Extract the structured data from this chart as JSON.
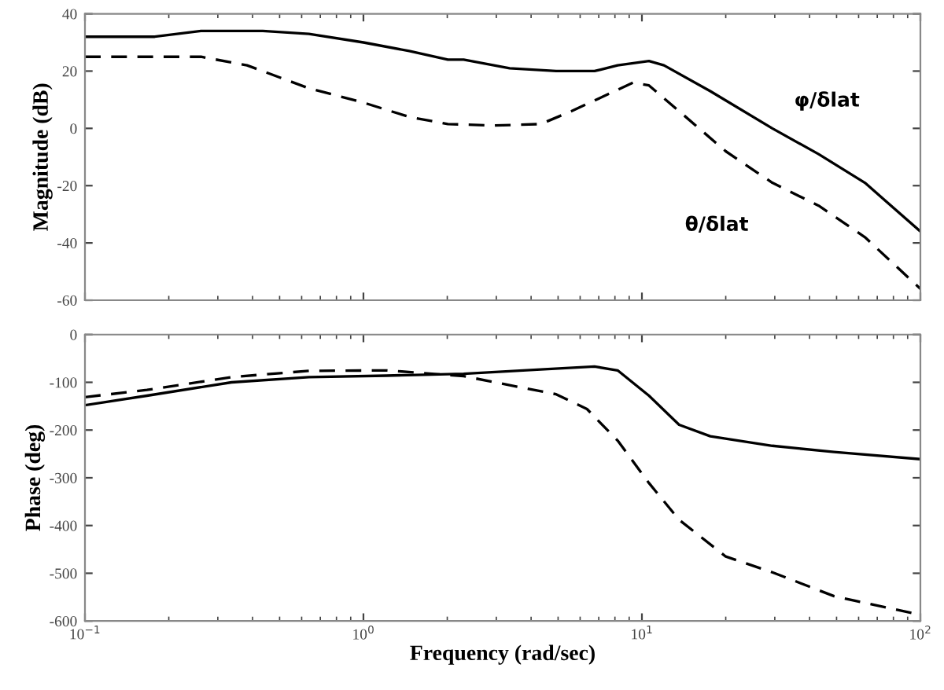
{
  "chart_data": [
    {
      "type": "line",
      "ylabel": "Magnitude (dB)",
      "log": "x",
      "xlim": [
        0.1,
        100
      ],
      "xticks": [
        {
          "value": 0.1,
          "label": null
        },
        {
          "value": 1,
          "label": null
        },
        {
          "value": 10,
          "label": null
        },
        {
          "value": 100,
          "label": null
        }
      ],
      "ylim": [
        -60,
        40
      ],
      "yticks": [
        -60,
        -40,
        -20,
        0,
        20,
        40
      ],
      "tick_labels": "y",
      "grid": false,
      "legend": false,
      "series": [
        {
          "name": "φ/δlat",
          "color": "#000000",
          "line_style": "solid",
          "x": [
            0.1,
            0.178,
            0.261,
            0.435,
            0.637,
            1,
            1.46,
            2.01,
            2.29,
            3.35,
            4.92,
            6.76,
            8.18,
            10.6,
            12.0,
            17.6,
            29.4,
            43.1,
            63.2,
            100
          ],
          "values": [
            32,
            32,
            34,
            34,
            33,
            30,
            27,
            24,
            24,
            21,
            20,
            20,
            22,
            23.5,
            22,
            13,
            0,
            -9,
            -19,
            -36
          ]
        },
        {
          "name": "θ/δlat",
          "color": "#000000",
          "line_style": "dashed",
          "x": [
            0.1,
            0.261,
            0.382,
            0.637,
            1,
            1.46,
            2.01,
            2.95,
            4.33,
            5.58,
            7.21,
            9.31,
            10.6,
            13.6,
            20.0,
            29.4,
            43.1,
            63.2,
            100
          ],
          "values": [
            25,
            25,
            22,
            14,
            9,
            4,
            1.5,
            1,
            1.5,
            6,
            11,
            16,
            15,
            6,
            -8,
            -19,
            -27,
            -38,
            -56
          ]
        }
      ]
    },
    {
      "type": "line",
      "xlabel": "Frequency (rad/sec)",
      "ylabel": "Phase (deg)",
      "log": "x",
      "xlim": [
        0.1,
        100
      ],
      "xticks": [
        {
          "value": 0.1,
          "label": "10$^{−1}$"
        },
        {
          "value": 1,
          "label": "10$^{0}$"
        },
        {
          "value": 10,
          "label": "10$^{1}$"
        },
        {
          "value": 100,
          "label": "10$^{2}$"
        }
      ],
      "ylim": [
        -600,
        0
      ],
      "yticks": [
        -600,
        -500,
        -400,
        -300,
        -200,
        -100,
        0
      ],
      "grid": false,
      "legend": false,
      "series": [
        {
          "color": "#000000",
          "line_style": "solid",
          "x": [
            0.1,
            0.167,
            0.336,
            0.637,
            1.21,
            2.29,
            4.33,
            6.76,
            8.18,
            10.6,
            13.6,
            17.6,
            29.4,
            49,
            100
          ],
          "values": [
            -148,
            -128,
            -100,
            -89,
            -86,
            -82,
            -73,
            -67,
            -75,
            -128,
            -189,
            -213,
            -233,
            -246,
            -261
          ]
        },
        {
          "color": "#000000",
          "line_style": "dashed",
          "x": [
            0.1,
            0.167,
            0.336,
            0.637,
            1.21,
            2.29,
            3.35,
            4.92,
            6.35,
            8.18,
            10.6,
            13.6,
            20.0,
            29.4,
            49,
            100
          ],
          "values": [
            -131,
            -116,
            -89,
            -76,
            -75,
            -87,
            -106,
            -125,
            -156,
            -222,
            -311,
            -388,
            -465,
            -498,
            -548,
            -587
          ]
        }
      ]
    }
  ]
}
